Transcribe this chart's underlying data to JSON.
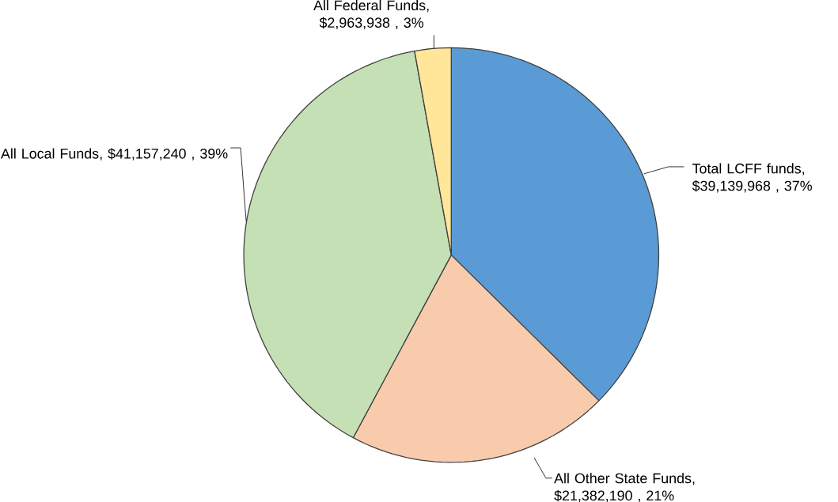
{
  "chart_data": {
    "type": "pie",
    "categories": [
      "Total LCFF funds",
      "All Other State Funds",
      "All Local Funds",
      "All Federal Funds"
    ],
    "values": [
      39139968,
      21382190,
      41157240,
      2963938
    ],
    "value_labels": [
      ", $39,139,968 , 37%",
      ", $21,382,190 , 21%",
      ", $41,157,240 , 39%",
      ", $2,963,938 , 3%"
    ],
    "colors": [
      "#5b9bd5",
      "#f8cbad",
      "#c5e0b4",
      "#ffe699"
    ]
  }
}
